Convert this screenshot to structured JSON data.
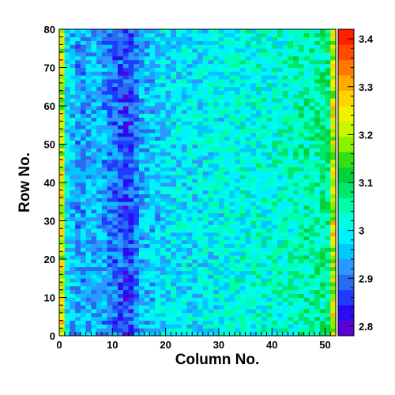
{
  "chart_data": {
    "type": "heatmap",
    "title": "",
    "xlabel": "Column No.",
    "ylabel": "Row No.",
    "xlim": [
      0,
      52
    ],
    "ylim": [
      0,
      80
    ],
    "x_ticks": [
      "0",
      "10",
      "20",
      "30",
      "40",
      "50"
    ],
    "y_ticks": [
      "0",
      "10",
      "20",
      "30",
      "40",
      "50",
      "60",
      "70",
      "80"
    ],
    "n_columns": 52,
    "n_rows": 80,
    "color_scale": {
      "min": 2.78,
      "max": 3.42,
      "ticks": [
        "2.8",
        "2.9",
        "3",
        "3.1",
        "3.2",
        "3.3",
        "3.4"
      ],
      "palette": [
        "#5a00d8",
        "#2a0cf0",
        "#1e3cff",
        "#2a6cf0",
        "#2a98ff",
        "#00c8ff",
        "#00f0ff",
        "#00ffdc",
        "#00ffa8",
        "#00e66e",
        "#00d23c",
        "#34e014",
        "#8cf000",
        "#c8f500",
        "#f0f000",
        "#ffd200",
        "#ffaa00",
        "#ff7800",
        "#ff4a00",
        "#ff1e00"
      ]
    },
    "column_mean_profile": [
      {
        "col": 0,
        "value": 3.22
      },
      {
        "col": 1,
        "value": 2.98
      },
      {
        "col": 3,
        "value": 2.93
      },
      {
        "col": 6,
        "value": 2.95
      },
      {
        "col": 8,
        "value": 2.93
      },
      {
        "col": 10,
        "value": 2.9
      },
      {
        "col": 12,
        "value": 2.86
      },
      {
        "col": 13,
        "value": 2.87
      },
      {
        "col": 15,
        "value": 2.95
      },
      {
        "col": 20,
        "value": 2.98
      },
      {
        "col": 25,
        "value": 2.99
      },
      {
        "col": 30,
        "value": 3.0
      },
      {
        "col": 35,
        "value": 3.01
      },
      {
        "col": 40,
        "value": 3.02
      },
      {
        "col": 45,
        "value": 3.04
      },
      {
        "col": 48,
        "value": 3.06
      },
      {
        "col": 50,
        "value": 3.07
      },
      {
        "col": 51,
        "value": 3.22
      }
    ],
    "grid": false,
    "legend": "colorbar-right"
  }
}
